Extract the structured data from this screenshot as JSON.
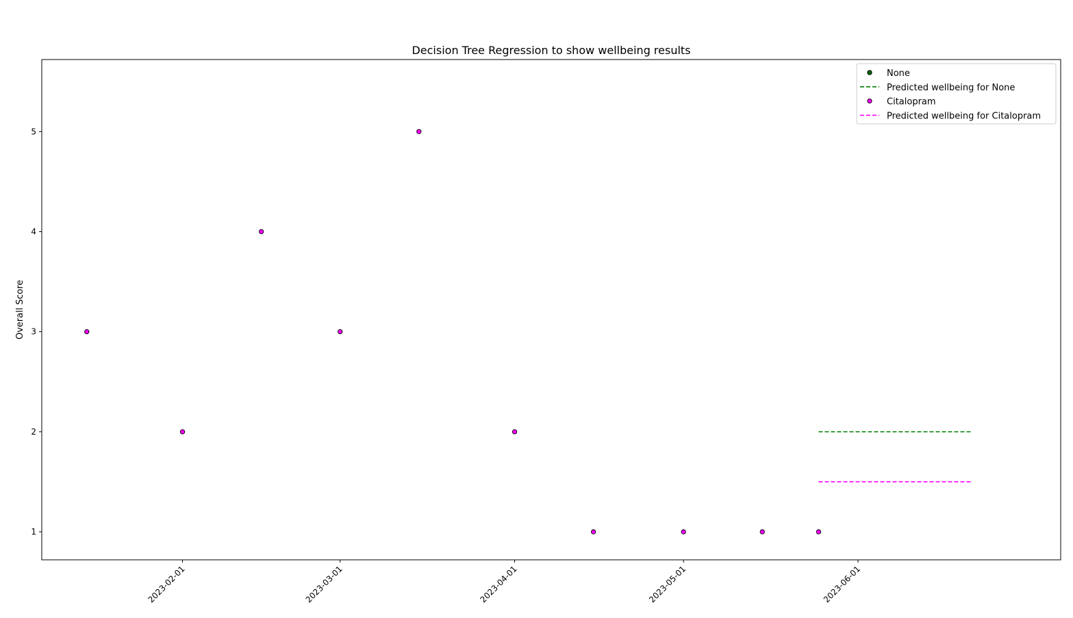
{
  "chart_data": {
    "type": "scatter",
    "title": "Decision Tree Regression to show wellbeing results",
    "xlabel": "",
    "ylabel": "Overall Score",
    "x_tick_labels": [
      "2023-02-01",
      "2023-03-01",
      "2023-04-01",
      "2023-05-01",
      "2023-06-01"
    ],
    "y_ticks": [
      1,
      2,
      3,
      4,
      5
    ],
    "xlim": [
      "2023-01-07",
      "2023-07-07"
    ],
    "ylim": [
      0.72,
      5.72
    ],
    "grid": false,
    "legend_position": "top-right",
    "series": [
      {
        "name": "None",
        "kind": "scatter",
        "color": "#006400",
        "points": []
      },
      {
        "name": "Predicted wellbeing for None",
        "kind": "dashed-line",
        "color": "#008000",
        "points": [
          {
            "x": "2023-05-25",
            "y": 2
          },
          {
            "x": "2023-06-21",
            "y": 2
          }
        ]
      },
      {
        "name": "Citalopram",
        "kind": "scatter",
        "color": "#ff00ff",
        "points": [
          {
            "x": "2023-01-15",
            "y": 3
          },
          {
            "x": "2023-02-01",
            "y": 2
          },
          {
            "x": "2023-02-15",
            "y": 4
          },
          {
            "x": "2023-03-01",
            "y": 3
          },
          {
            "x": "2023-03-15",
            "y": 5
          },
          {
            "x": "2023-04-01",
            "y": 2
          },
          {
            "x": "2023-04-15",
            "y": 1
          },
          {
            "x": "2023-05-01",
            "y": 1
          },
          {
            "x": "2023-05-15",
            "y": 1
          },
          {
            "x": "2023-05-25",
            "y": 1
          }
        ]
      },
      {
        "name": "Predicted wellbeing for Citalopram",
        "kind": "dashed-line",
        "color": "#ff00ff",
        "points": [
          {
            "x": "2023-05-25",
            "y": 1.5
          },
          {
            "x": "2023-06-21",
            "y": 1.5
          }
        ]
      }
    ]
  }
}
